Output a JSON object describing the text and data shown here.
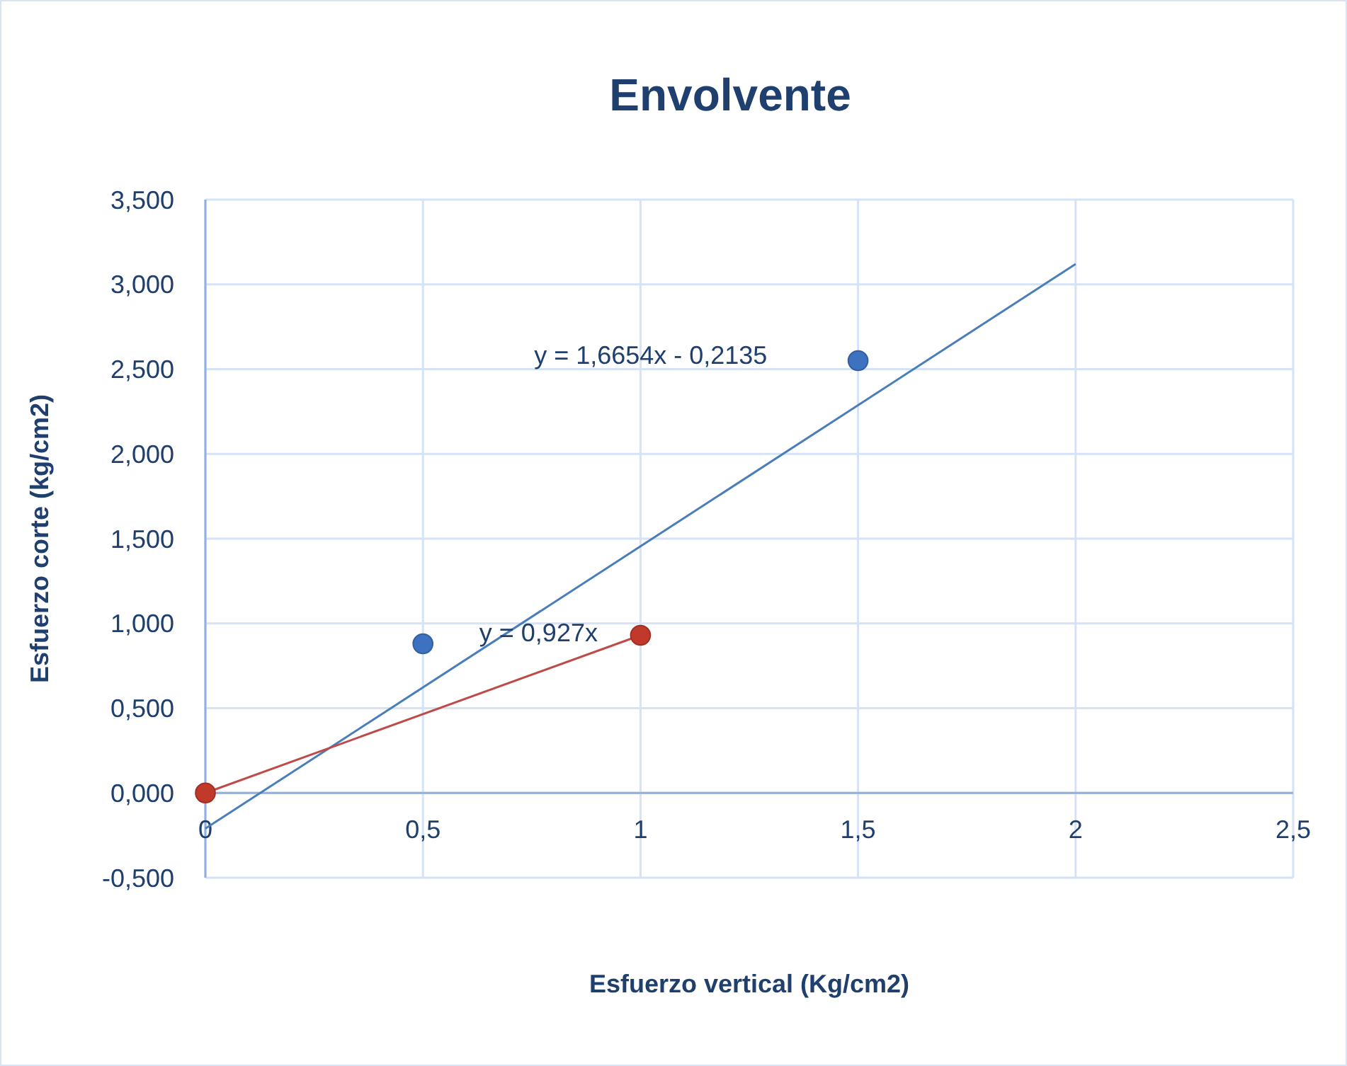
{
  "chart_data": {
    "type": "scatter",
    "title": "Envolvente",
    "xlabel": "Esfuerzo vertical (Kg/cm2)",
    "ylabel": "Esfuerzo corte (kg/cm2)",
    "xlim": [
      0,
      2.5
    ],
    "ylim": [
      -0.5,
      3.5
    ],
    "xticks": [
      0,
      {
        "value": 0.5,
        "label": "0,5"
      },
      1,
      {
        "value": 1.5,
        "label": "1,5"
      },
      2,
      {
        "value": 2.5,
        "label": "2,5"
      }
    ],
    "yticks": [
      {
        "value": -0.5,
        "label": "-0,500"
      },
      {
        "value": 0,
        "label": "0,000"
      },
      {
        "value": 0.5,
        "label": "0,500"
      },
      {
        "value": 1,
        "label": "1,000"
      },
      {
        "value": 1.5,
        "label": "1,500"
      },
      {
        "value": 2,
        "label": "2,000"
      },
      {
        "value": 2.5,
        "label": "2,500"
      },
      {
        "value": 3,
        "label": "3,000"
      },
      {
        "value": 3.5,
        "label": "3,500"
      }
    ],
    "grid": true,
    "marker": "circle",
    "series": [
      {
        "type": "line",
        "marker": "none",
        "color": "#4a7ebb",
        "x": [
          0,
          2
        ],
        "values": [
          -0.21,
          3.12
        ]
      },
      {
        "type": "line",
        "marker": "none",
        "color": "#be4b48",
        "x": [
          0,
          1
        ],
        "values": [
          0,
          0.93
        ]
      },
      {
        "color": "#3d72c0",
        "x": [
          0.5,
          1.5
        ],
        "values": [
          0.88,
          2.55
        ]
      },
      {
        "color": "#c0392b",
        "x": [
          0,
          1
        ],
        "values": [
          0,
          0.93
        ]
      }
    ],
    "annotations": [
      "y = 1,6654x - 0,2135",
      "y = 0,927x"
    ]
  }
}
